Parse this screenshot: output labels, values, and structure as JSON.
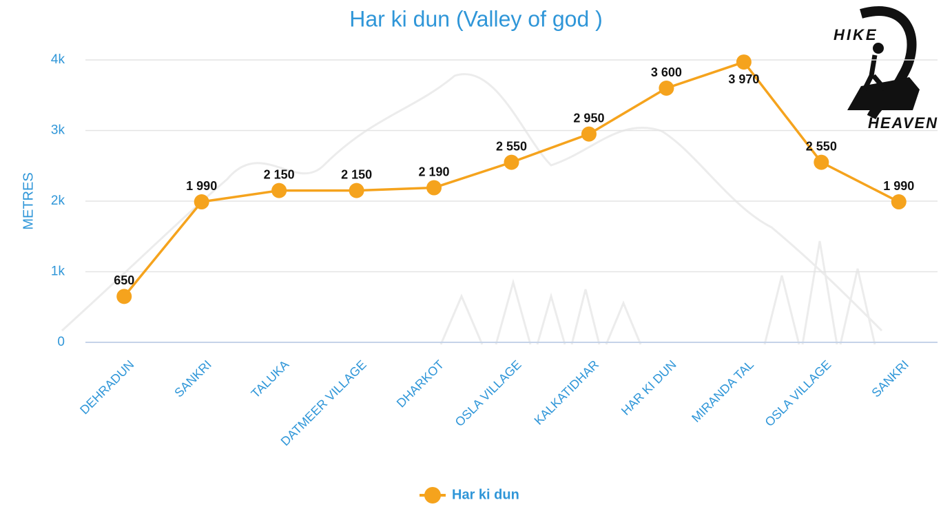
{
  "chart_data": {
    "type": "line",
    "title": "Har ki dun (Valley of god )",
    "y_label": "METRES",
    "categories": [
      "DEHRADUN",
      "SANKRI",
      "TALUKA",
      "DATMEER VILLAGE",
      "DHARKOT",
      "OSLA VILLAGE",
      "KALKATIDHAR",
      "HAR KI DUN",
      "MIRANDA TAL",
      "OSLA VILLAGE",
      "SANKRI"
    ],
    "series": [
      {
        "name": "Har ki dun",
        "color": "#f5a31d",
        "values": [
          650,
          1990,
          2150,
          2150,
          2190,
          2550,
          2950,
          3600,
          3970,
          2550,
          1990
        ],
        "value_labels": [
          "650",
          "1 990",
          "2 150",
          "2 150",
          "2 190",
          "2 550",
          "2 950",
          "3 600",
          "3 970",
          "2 550",
          "1 990"
        ]
      }
    ],
    "ylim": [
      0,
      4000
    ],
    "yticks": [
      0,
      {
        "value": 1000,
        "label": "1k"
      },
      {
        "value": 2000,
        "label": "2k"
      },
      {
        "value": 3000,
        "label": "3k"
      },
      {
        "value": 4000,
        "label": "4k"
      }
    ],
    "grid": true,
    "legend": "bottom"
  },
  "logo": [
    "HIKE",
    "HEAVEN"
  ]
}
